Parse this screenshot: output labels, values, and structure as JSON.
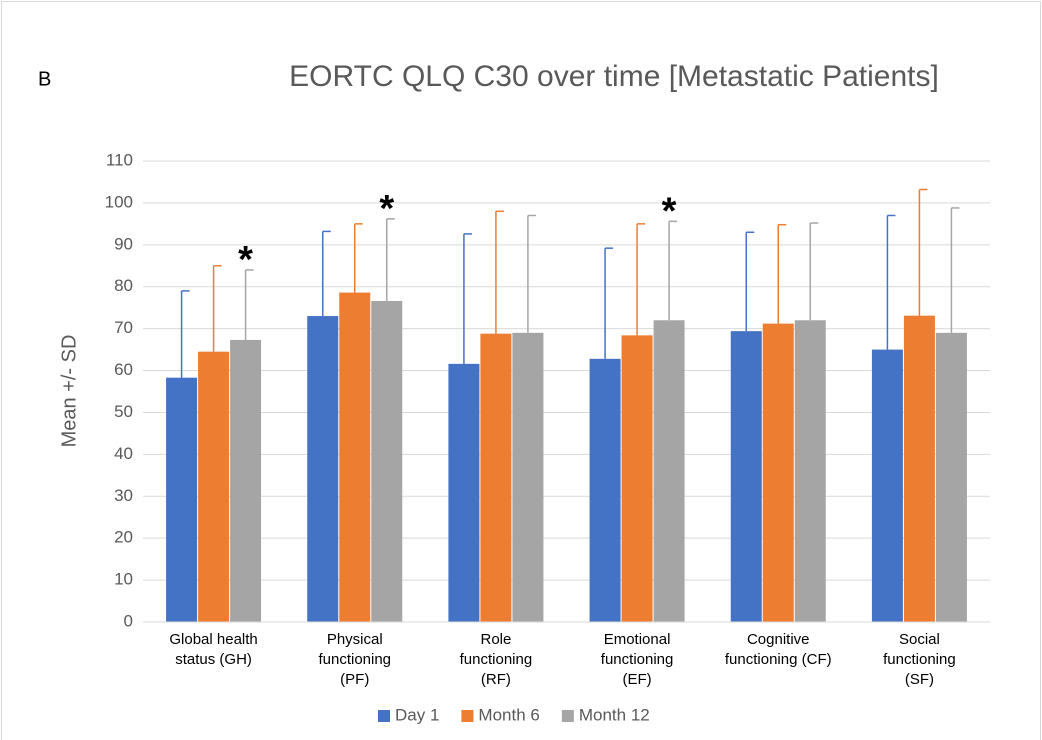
{
  "chart_data": {
    "type": "bar",
    "panel_label": "B",
    "title": "EORTC QLQ C30 over time [Metastatic Patients]",
    "y_label": "Mean +/- SD",
    "categories": [
      "Global health\nstatus (GH)",
      "Physical\nfunctioning\n(PF)",
      "Role\nfunctioning\n(RF)",
      "Emotional\nfunctioning\n(EF)",
      "Cognitive\nfunctioning (CF)",
      "Social\nfunctioning\n(SF)"
    ],
    "series": [
      {
        "name": "Day 1",
        "color": "#4472c4",
        "values": [
          58.3,
          73,
          61.6,
          62.8,
          69.4,
          65
        ],
        "errors": [
          20.7,
          20.2,
          31,
          26.4,
          23.6,
          32
        ]
      },
      {
        "name": "Month 6",
        "color": "#ed7d31",
        "values": [
          64.5,
          78.6,
          68.8,
          68.4,
          71.2,
          73.1
        ],
        "errors": [
          20.5,
          16.4,
          29.2,
          26.6,
          23.6,
          30.1
        ]
      },
      {
        "name": "Month 12",
        "color": "#a5a5a5",
        "values": [
          67.3,
          76.6,
          69,
          72,
          72,
          69
        ],
        "errors": [
          16.7,
          19.6,
          28,
          23.6,
          23.2,
          29.8
        ]
      }
    ],
    "annotations": [
      {
        "text": "*",
        "category": 0,
        "series": 2
      },
      {
        "text": "*",
        "category": 1,
        "series": 2
      },
      {
        "text": "*",
        "category": 3,
        "series": 2
      }
    ],
    "ylim": [
      0,
      110
    ],
    "yticks": [
      0,
      10,
      20,
      30,
      40,
      50,
      60,
      70,
      80,
      90,
      100,
      110
    ],
    "grid": true,
    "legend": "bottom"
  }
}
